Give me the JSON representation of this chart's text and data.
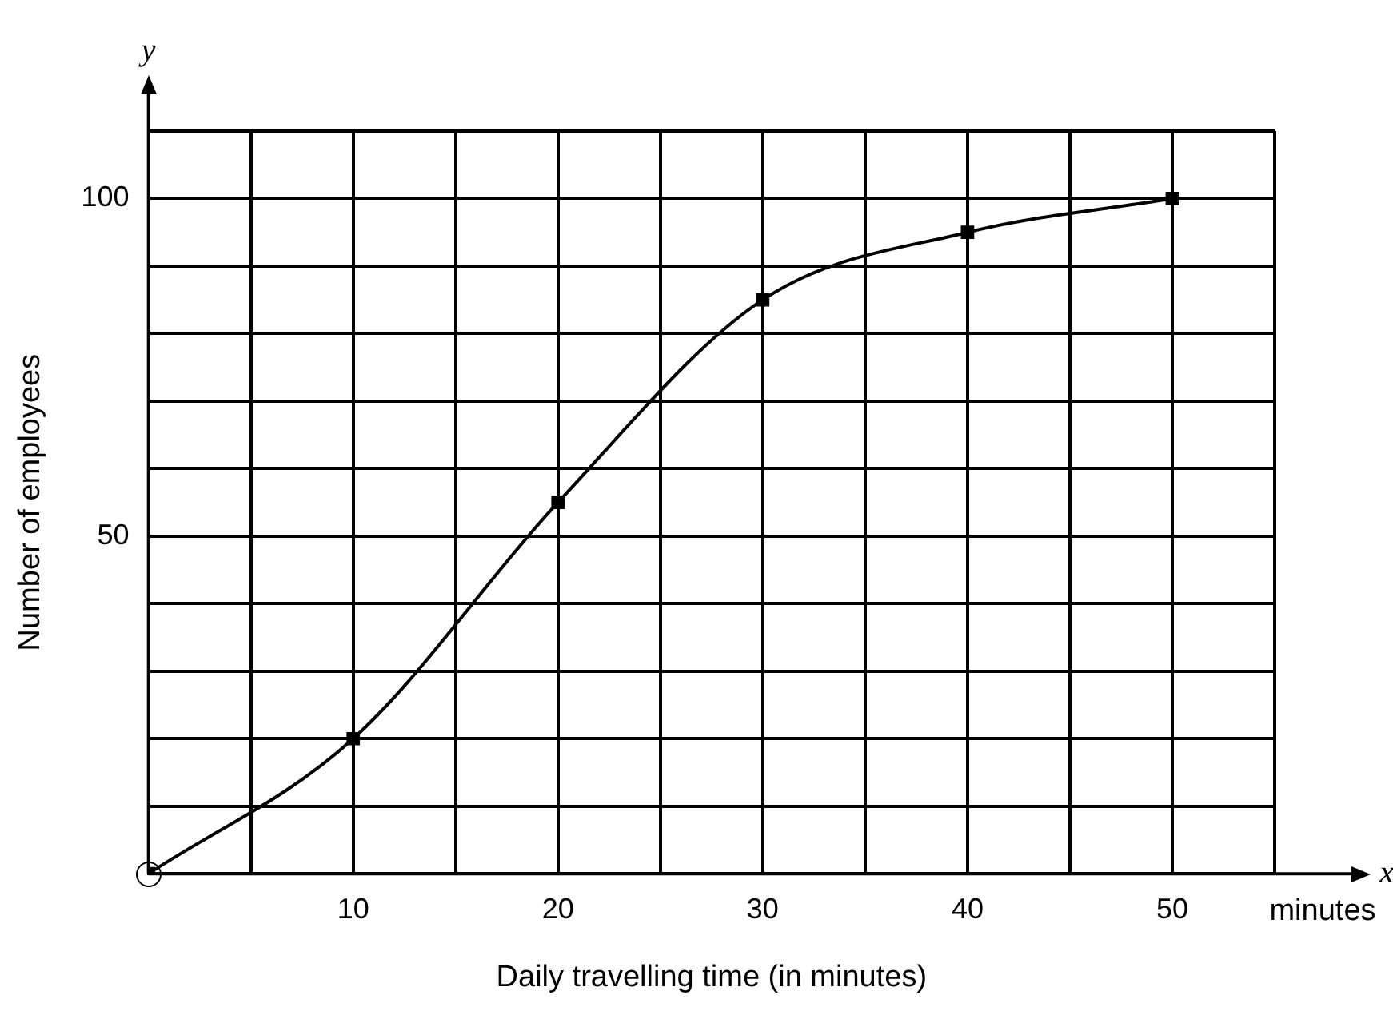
{
  "chart_data": {
    "type": "line",
    "xlabel": "Daily travelling time (in minutes)",
    "ylabel": "Number of employees",
    "x": [
      0,
      10,
      20,
      30,
      40,
      50
    ],
    "series": [
      {
        "color": "#000000",
        "values": [
          0,
          20,
          55,
          85,
          95,
          100
        ]
      }
    ],
    "xlim": [
      0,
      55
    ],
    "xticks": [
      {
        "value": 0,
        "label": null
      },
      {
        "value": 5,
        "label": null
      },
      10,
      {
        "value": 15,
        "label": null
      },
      20,
      {
        "value": 25,
        "label": null
      },
      30,
      {
        "value": 35,
        "label": null
      },
      40,
      {
        "value": 45,
        "label": null
      },
      50,
      {
        "value": 55,
        "label": null
      }
    ],
    "ylim": [
      0,
      110
    ],
    "yticks": [
      {
        "value": 0,
        "label": null
      },
      {
        "value": 10,
        "label": null
      },
      {
        "value": 20,
        "label": null
      },
      {
        "value": 30,
        "label": null
      },
      {
        "value": 40,
        "label": null
      },
      50,
      {
        "value": 60,
        "label": null
      },
      {
        "value": 70,
        "label": null
      },
      {
        "value": 80,
        "label": null
      },
      {
        "value": 90,
        "label": null
      },
      100,
      {
        "value": 110,
        "label": null
      }
    ],
    "annotations": [
      "x",
      "y",
      "minutes"
    ],
    "grid": true,
    "legend": false,
    "marker": "square",
    "line_style": "solid"
  }
}
